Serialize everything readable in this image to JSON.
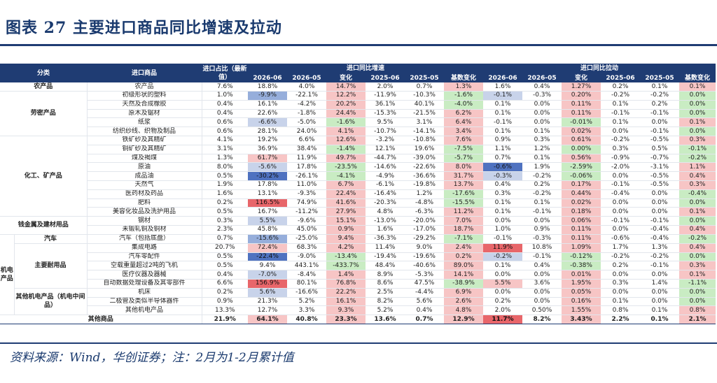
{
  "title": "图表 27 主要进口商品同比增速及拉动",
  "source": "资料来源：Wind，华创证券；注：2月为1-2月累计值",
  "header": {
    "col_category": "分类",
    "col_item": "进口商品",
    "col_share": "进口占比（最新值）",
    "group_growth": "进口同比增速",
    "group_pull": "进口同比拉动",
    "sub": [
      "2026-06",
      "2026-05",
      "变化",
      "2025-06",
      "2025-05",
      "基数变化"
    ]
  },
  "palette": {
    "pink": "#f7c5c5",
    "red": "#e8666a",
    "green": "#c9ecc3",
    "blue_light": "#c8d3ea",
    "blue_mid": "#96aedb",
    "blue_dark": "#4f72c0"
  },
  "rows": [
    {
      "cat": "农产品",
      "cat_span": 1,
      "item": "农产品",
      "cells": [
        "7.6%",
        "18.8%",
        "4.0%",
        "14.7%",
        "2.0%",
        "0.7%",
        "1.3%",
        "1.6%",
        "0.4%",
        "1.27%",
        "0.2%",
        "0.1%",
        "0.1%"
      ],
      "hl": {
        "3": "pink",
        "6": "pink",
        "9": "pink",
        "12": "pink"
      }
    },
    {
      "cat": "劳密产品",
      "cat_span": 5,
      "item": "初级形状的塑料",
      "cells": [
        "1.0%",
        "-9.9%",
        "-22.1%",
        "12.2%",
        "-11.9%",
        "-10.3%",
        "-1.6%",
        "-0.1%",
        "-0.3%",
        "0.20%",
        "-0.2%",
        "-0.2%",
        "0.0%"
      ],
      "hl": {
        "1": "blue_mid",
        "3": "pink",
        "6": "green",
        "7": "blue_light",
        "9": "pink",
        "12": "green"
      }
    },
    {
      "item": "天然及合成橡胶",
      "cells": [
        "0.4%",
        "16.1%",
        "-4.2%",
        "20.2%",
        "36.1%",
        "40.1%",
        "-4.0%",
        "0.1%",
        "0.0%",
        "0.11%",
        "0.1%",
        "0.2%",
        "0.0%"
      ],
      "hl": {
        "3": "pink",
        "6": "green",
        "9": "pink",
        "12": "green"
      }
    },
    {
      "item": "原木及锯材",
      "cells": [
        "0.4%",
        "22.6%",
        "-1.8%",
        "24.4%",
        "-15.3%",
        "-21.5%",
        "6.2%",
        "0.1%",
        "0.0%",
        "0.11%",
        "-0.1%",
        "-0.1%",
        "0.0%"
      ],
      "hl": {
        "3": "pink",
        "6": "pink",
        "9": "pink",
        "12": "green"
      }
    },
    {
      "item": "纸浆",
      "cells": [
        "0.6%",
        "-6.6%",
        "-5.0%",
        "-1.6%",
        "9.5%",
        "3.1%",
        "6.4%",
        "-0.1%",
        "0.0%",
        "-0.01%",
        "0.1%",
        "0.0%",
        "0.1%"
      ],
      "hl": {
        "1": "blue_light",
        "3": "green",
        "6": "pink",
        "9": "green",
        "12": "pink"
      }
    },
    {
      "item": "纺织纱线、织物及制品",
      "cells": [
        "0.6%",
        "28.1%",
        "24.0%",
        "4.1%",
        "-10.7%",
        "-14.1%",
        "3.4%",
        "0.1%",
        "0.1%",
        "0.02%",
        "0.0%",
        "-0.1%",
        "0.0%"
      ],
      "hl": {
        "3": "pink",
        "6": "pink",
        "9": "pink",
        "12": "green"
      }
    },
    {
      "cat": "化工、矿产品",
      "cat_span": 9,
      "item": "铁矿砂及其精矿",
      "cells": [
        "4.1%",
        "19.2%",
        "6.6%",
        "12.6%",
        "-3.2%",
        "-10.8%",
        "7.6%",
        "0.9%",
        "0.3%",
        "0.61%",
        "-0.2%",
        "-0.5%",
        "0.3%"
      ],
      "hl": {
        "3": "pink",
        "6": "pink",
        "9": "pink",
        "12": "pink"
      }
    },
    {
      "item": "铜矿砂及其精矿",
      "cells": [
        "3.1%",
        "36.9%",
        "38.4%",
        "-1.4%",
        "12.1%",
        "19.6%",
        "-7.5%",
        "1.1%",
        "1.2%",
        "0.00%",
        "0.3%",
        "0.5%",
        "-0.1%"
      ],
      "hl": {
        "3": "green",
        "6": "green",
        "9": "green",
        "12": "green"
      }
    },
    {
      "item": "煤及褐煤",
      "cells": [
        "1.3%",
        "61.7%",
        "11.9%",
        "49.7%",
        "-44.7%",
        "-39.0%",
        "-5.7%",
        "0.7%",
        "0.1%",
        "0.56%",
        "-0.9%",
        "-0.7%",
        "-0.2%"
      ],
      "hl": {
        "1": "pink",
        "3": "pink",
        "6": "green",
        "9": "pink",
        "12": "green"
      }
    },
    {
      "item": "原油",
      "cells": [
        "8.0%",
        "-5.6%",
        "17.8%",
        "-23.5%",
        "-14.6%",
        "-22.6%",
        "8.0%",
        "-0.6%",
        "1.9%",
        "-2.59%",
        "-2.0%",
        "-3.1%",
        "1.1%"
      ],
      "hl": {
        "1": "blue_light",
        "3": "green",
        "6": "pink",
        "7": "blue_dark",
        "9": "green",
        "12": "pink"
      }
    },
    {
      "item": "成品油",
      "cells": [
        "0.5%",
        "-30.2%",
        "-26.1%",
        "-4.1%",
        "-4.9%",
        "-36.6%",
        "31.7%",
        "-0.3%",
        "-0.2%",
        "-0.06%",
        "0.0%",
        "-0.5%",
        "0.4%"
      ],
      "hl": {
        "1": "blue_dark",
        "3": "green",
        "6": "pink",
        "7": "blue_light",
        "9": "green",
        "12": "pink"
      }
    },
    {
      "item": "天然气",
      "cells": [
        "1.9%",
        "17.8%",
        "11.0%",
        "6.7%",
        "-6.1%",
        "-19.8%",
        "13.7%",
        "0.4%",
        "0.2%",
        "0.17%",
        "-0.1%",
        "-0.5%",
        "0.3%"
      ],
      "hl": {
        "3": "pink",
        "6": "pink",
        "9": "pink",
        "12": "pink"
      }
    },
    {
      "item": "医药材及药品",
      "cells": [
        "1.6%",
        "13.1%",
        "-9.3%",
        "22.4%",
        "-16.4%",
        "1.2%",
        "-17.6%",
        "0.3%",
        "-0.2%",
        "0.44%",
        "-0.4%",
        "0.0%",
        "-0.4%"
      ],
      "hl": {
        "3": "pink",
        "6": "green",
        "9": "pink",
        "12": "green"
      }
    },
    {
      "item": "肥料",
      "cells": [
        "0.2%",
        "116.5%",
        "74.9%",
        "41.6%",
        "-20.3%",
        "-4.8%",
        "-15.5%",
        "0.1%",
        "0.1%",
        "0.02%",
        "0.0%",
        "0.0%",
        "0.0%"
      ],
      "hl": {
        "1": "red",
        "3": "pink",
        "6": "green",
        "9": "pink",
        "12": "green"
      }
    },
    {
      "item": "美容化妆品及洗护用品",
      "cells": [
        "0.5%",
        "16.7%",
        "-11.2%",
        "27.9%",
        "4.8%",
        "-6.3%",
        "11.2%",
        "0.1%",
        "-0.1%",
        "0.18%",
        "0.0%",
        "0.0%",
        "0.1%"
      ],
      "hl": {
        "3": "pink",
        "6": "pink",
        "9": "pink",
        "12": "pink"
      }
    },
    {
      "cat": "钱金属及建材用品",
      "cat_span": 2,
      "item": "钢材",
      "cells": [
        "0.3%",
        "5.5%",
        "-9.6%",
        "15.1%",
        "-13.0%",
        "-20.0%",
        "7.0%",
        "0.0%",
        "0.0%",
        "0.06%",
        "-0.1%",
        "-0.1%",
        "0.0%"
      ],
      "hl": {
        "1": "blue_light",
        "3": "pink",
        "6": "pink",
        "9": "pink",
        "12": "green"
      }
    },
    {
      "item": "未锻轧铜及铜材",
      "cells": [
        "2.3%",
        "45.8%",
        "45.0%",
        "0.9%",
        "1.6%",
        "-17.0%",
        "18.7%",
        "1.0%",
        "0.9%",
        "0.11%",
        "0.0%",
        "-0.4%",
        "0.4%"
      ],
      "hl": {
        "3": "pink",
        "6": "pink",
        "9": "pink",
        "12": "pink"
      }
    },
    {
      "cat": "汽车",
      "cat_span": 1,
      "item": "汽车（包括底盘）",
      "cells": [
        "0.7%",
        "-15.6%",
        "-25.0%",
        "9.4%",
        "-36.3%",
        "-29.2%",
        "-7.1%",
        "-0.1%",
        "-0.3%",
        "0.11%",
        "-0.6%",
        "-0.4%",
        "-0.2%"
      ],
      "hl": {
        "1": "blue_mid",
        "3": "pink",
        "6": "green",
        "9": "pink",
        "12": "green"
      }
    },
    {
      "cat": "主要耐用品",
      "cat_span": 5,
      "item": "集成电路",
      "cells": [
        "20.7%",
        "72.4%",
        "68.3%",
        "4.2%",
        "11.4%",
        "9.0%",
        "2.4%",
        "11.9%",
        "10.8%",
        "1.09%",
        "1.7%",
        "1.3%",
        "0.4%"
      ],
      "hl": {
        "1": "pink",
        "3": "pink",
        "6": "pink",
        "7": "red",
        "9": "pink",
        "12": "pink"
      }
    },
    {
      "item": "汽车零配件",
      "cells": [
        "0.5%",
        "-22.4%",
        "-9.0%",
        "-13.4%",
        "-19.4%",
        "-19.6%",
        "0.2%",
        "-0.2%",
        "-0.1%",
        "-0.12%",
        "-0.2%",
        "-0.2%",
        "0.0%"
      ],
      "hl": {
        "1": "blue_dark",
        "3": "green",
        "6": "pink",
        "7": "blue_light",
        "9": "green",
        "12": "green"
      }
    },
    {
      "item": "空载重量超过2吨的飞机",
      "cells": [
        "0.5%",
        "9.4%",
        "443.1%",
        "-433.7%",
        "48.4%",
        "-40.6%",
        "89.0%",
        "0.1%",
        "0.4%",
        "-0.38%",
        "0.2%",
        "-0.1%",
        "0.3%"
      ],
      "hl": {
        "3": "green",
        "6": "pink",
        "9": "green",
        "12": "pink"
      }
    },
    {
      "item": "医疗仪器及器械",
      "cells": [
        "0.4%",
        "-7.0%",
        "-8.4%",
        "1.4%",
        "8.9%",
        "-5.3%",
        "14.1%",
        "0.0%",
        "0.0%",
        "0.01%",
        "0.0%",
        "0.0%",
        "0.1%"
      ],
      "hl": {
        "1": "blue_light",
        "3": "pink",
        "6": "pink",
        "9": "pink",
        "12": "pink"
      }
    },
    {
      "item": "自动数据处理设备及其零部件",
      "cells": [
        "6.6%",
        "156.9%",
        "80.1%",
        "76.8%",
        "8.6%",
        "47.5%",
        "-38.9%",
        "5.5%",
        "3.6%",
        "1.95%",
        "0.3%",
        "1.4%",
        "-1.1%"
      ],
      "hl": {
        "1": "red",
        "3": "pink",
        "6": "green",
        "7": "pink",
        "9": "pink",
        "12": "green"
      }
    },
    {
      "cat": "其他机电产品（机电中间品）",
      "cat_span": 3,
      "item": "机床",
      "cells": [
        "0.2%",
        "5.6%",
        "-16.6%",
        "22.2%",
        "2.5%",
        "-4.4%",
        "6.9%",
        "0.0%",
        "0.0%",
        "0.05%",
        "0.0%",
        "0.0%",
        "0.0%"
      ],
      "hl": {
        "1": "blue_light",
        "3": "pink",
        "6": "pink",
        "9": "pink",
        "12": "green"
      }
    },
    {
      "item": "二极管及类似半导体器件",
      "cells": [
        "0.9%",
        "21.3%",
        "5.2%",
        "16.1%",
        "8.2%",
        "5.6%",
        "2.6%",
        "0.2%",
        "0.0%",
        "0.16%",
        "0.1%",
        "0.0%",
        "0.0%"
      ],
      "hl": {
        "3": "pink",
        "6": "pink",
        "9": "pink",
        "12": "green"
      }
    },
    {
      "item": "其他机电产品",
      "cells": [
        "13.3%",
        "12.7%",
        "3.3%",
        "9.3%",
        "5.2%",
        "0.4%",
        "4.8%",
        "2.0%",
        "0.50%",
        "1.55%",
        "0.8%",
        "0.1%",
        "0.8%"
      ],
      "hl": {
        "3": "pink",
        "6": "pink",
        "9": "pink",
        "12": "pink"
      }
    },
    {
      "total": true,
      "item": "其他商品",
      "cells": [
        "21.9%",
        "64.1%",
        "40.8%",
        "23.3%",
        "13.6%",
        "0.7%",
        "12.9%",
        "11.7%",
        "8.2%",
        "3.43%",
        "2.2%",
        "0.1%",
        "2.1%"
      ],
      "hl": {
        "1": "pink",
        "3": "pink",
        "6": "pink",
        "7": "red",
        "9": "pink",
        "12": "pink"
      }
    }
  ],
  "side_label": "机电产品"
}
